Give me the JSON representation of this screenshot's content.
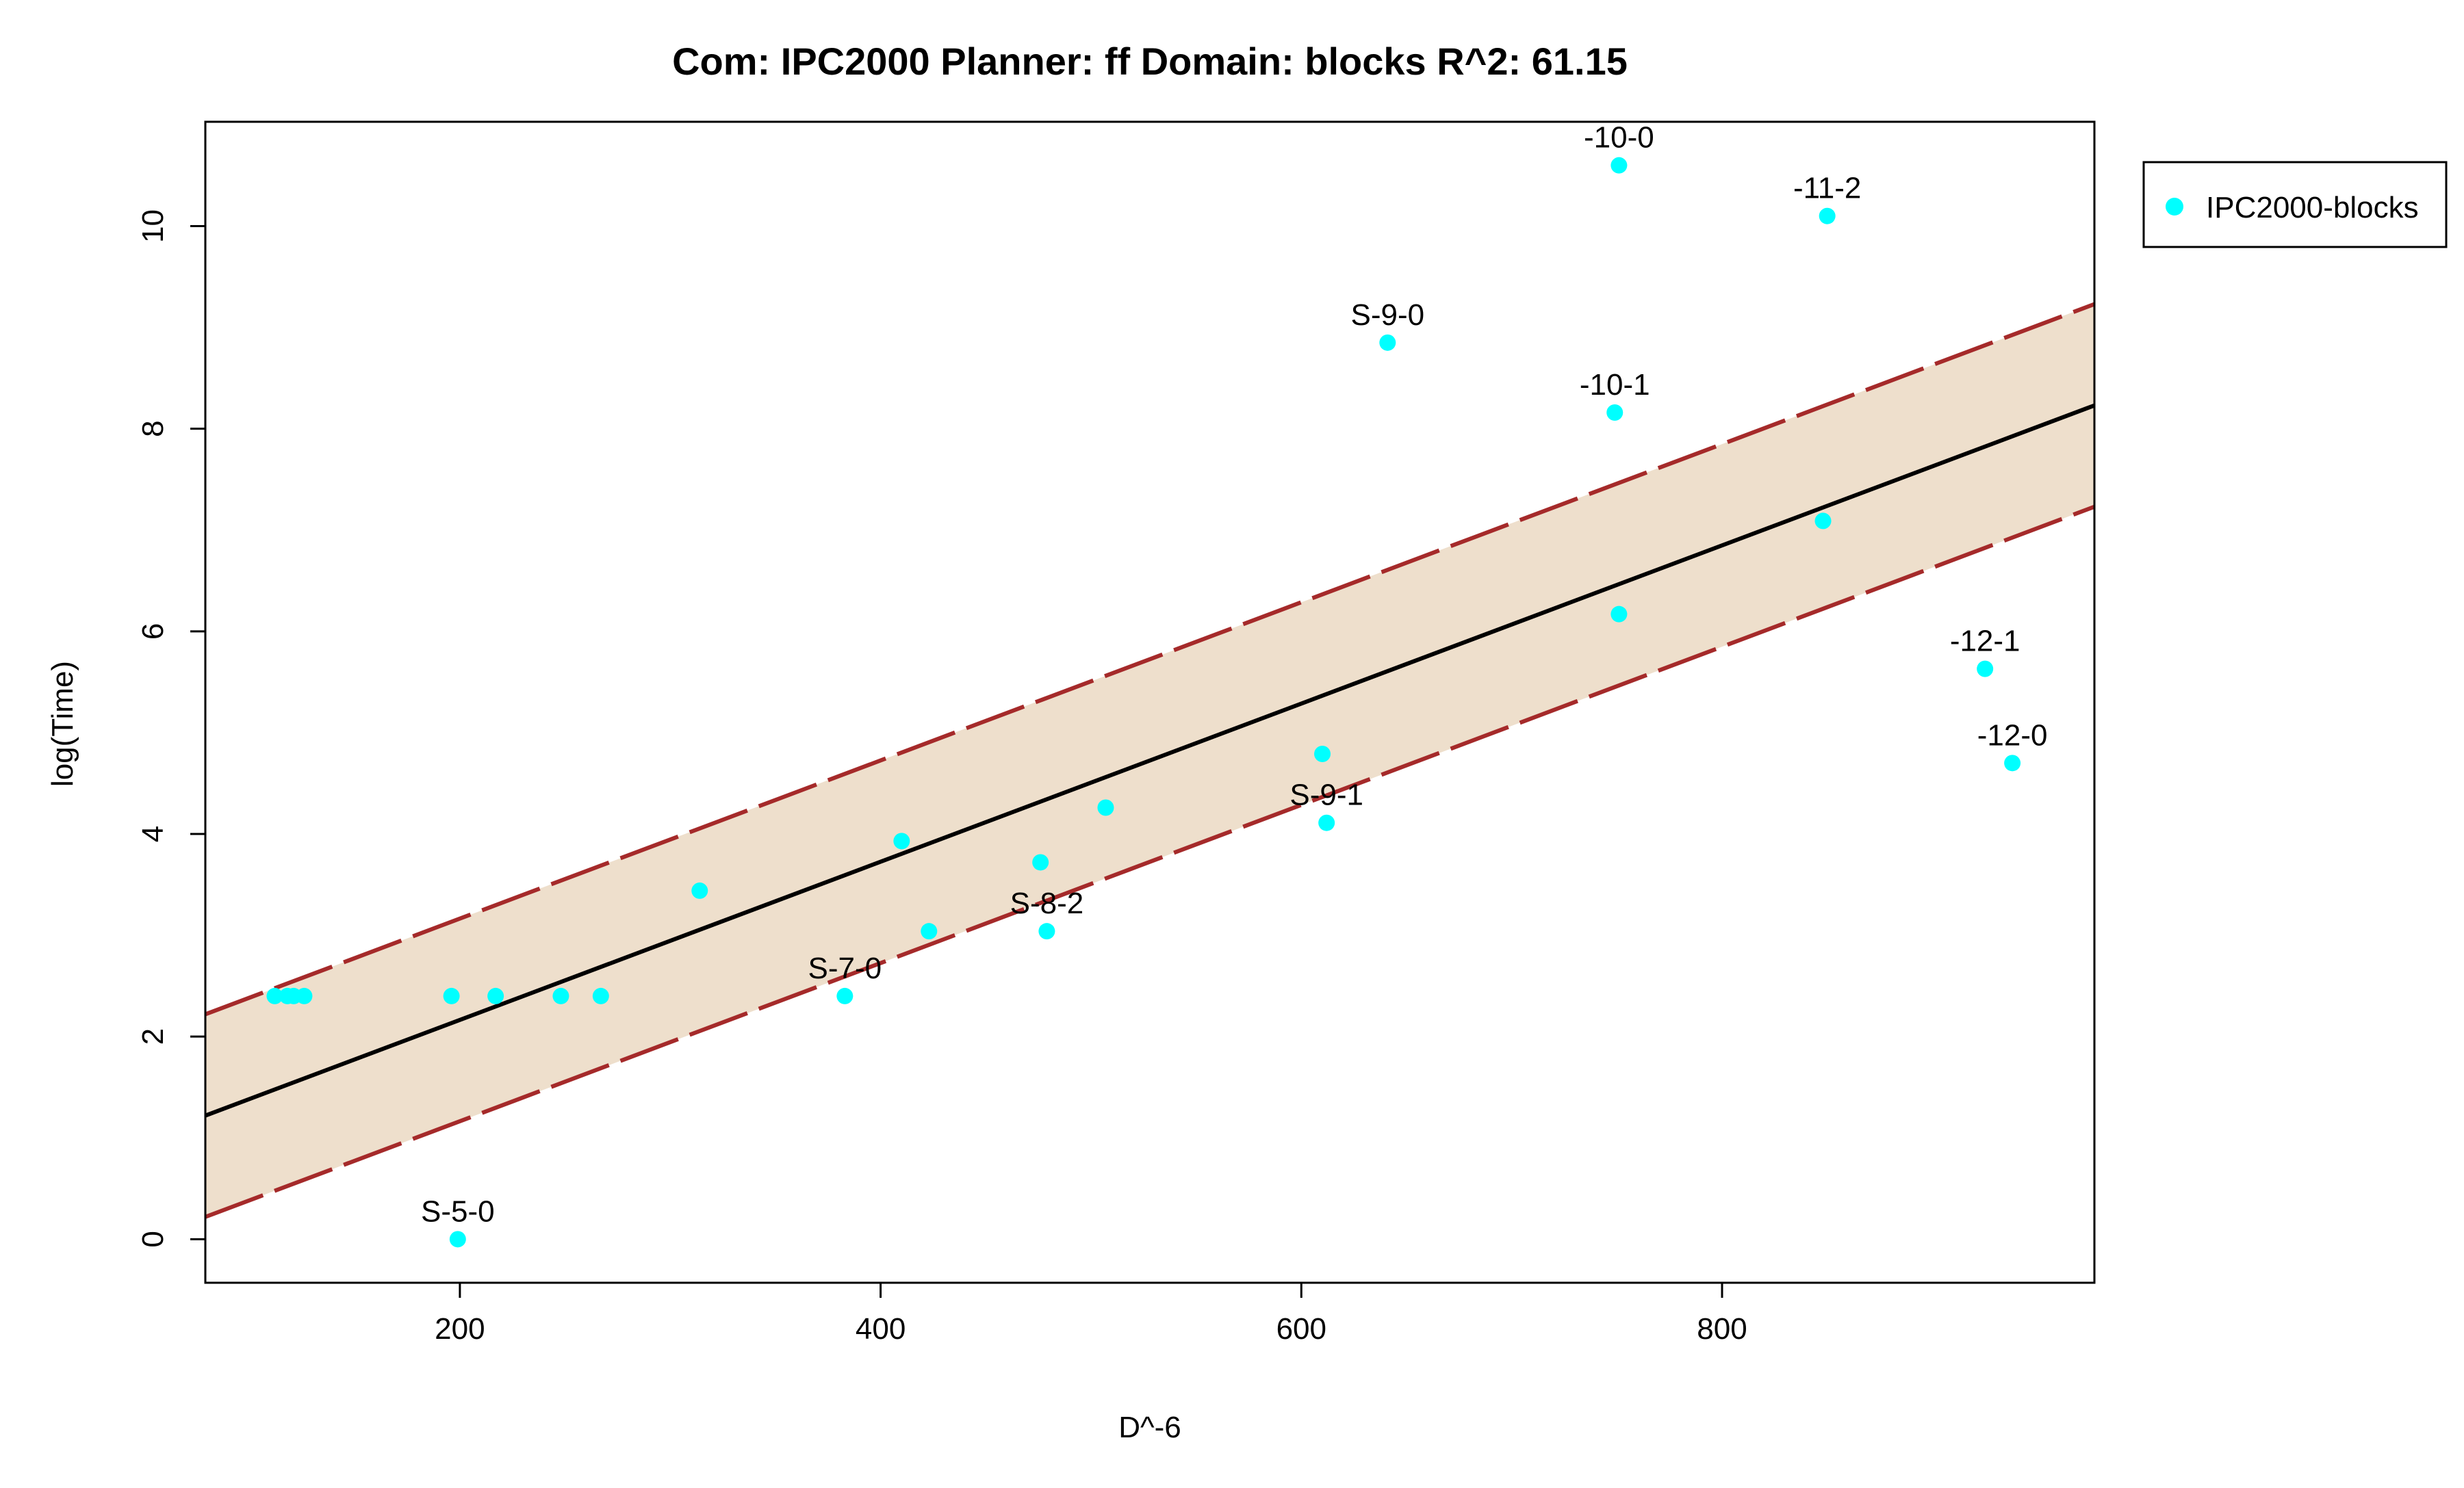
{
  "chart_data": {
    "type": "scatter",
    "title": "Com: IPC2000 Planner: ff Domain: blocks R^2: 61.15",
    "xlabel": "D^-6",
    "ylabel": "log(Time)",
    "xlim": [
      79,
      977
    ],
    "ylim": [
      -0.43,
      11.03
    ],
    "xticks": [
      200,
      400,
      600,
      800
    ],
    "yticks": [
      0,
      2,
      4,
      6,
      8,
      10
    ],
    "grid": false,
    "legend": {
      "position": "outside-right-top",
      "entries": [
        "IPC2000-blocks"
      ]
    },
    "series": [
      {
        "name": "IPC2000-blocks",
        "color": "#00ffff",
        "points": [
          {
            "x": 112,
            "y": 2.4,
            "label": ""
          },
          {
            "x": 118,
            "y": 2.4,
            "label": ""
          },
          {
            "x": 121,
            "y": 2.4,
            "label": ""
          },
          {
            "x": 126,
            "y": 2.4,
            "label": ""
          },
          {
            "x": 196,
            "y": 2.4,
            "label": ""
          },
          {
            "x": 199,
            "y": 0.0,
            "label": "S-5-0"
          },
          {
            "x": 217,
            "y": 2.4,
            "label": ""
          },
          {
            "x": 248,
            "y": 2.4,
            "label": ""
          },
          {
            "x": 267,
            "y": 2.4,
            "label": ""
          },
          {
            "x": 314,
            "y": 3.44,
            "label": ""
          },
          {
            "x": 383,
            "y": 2.4,
            "label": "S-7-0"
          },
          {
            "x": 410,
            "y": 3.93,
            "label": ""
          },
          {
            "x": 423,
            "y": 3.04,
            "label": ""
          },
          {
            "x": 476,
            "y": 3.72,
            "label": ""
          },
          {
            "x": 479,
            "y": 3.04,
            "label": "S-8-2"
          },
          {
            "x": 507,
            "y": 4.26,
            "label": ""
          },
          {
            "x": 610,
            "y": 4.79,
            "label": ""
          },
          {
            "x": 612,
            "y": 4.11,
            "label": "S-9-1"
          },
          {
            "x": 641,
            "y": 8.85,
            "label": "S-9-0"
          },
          {
            "x": 749,
            "y": 8.16,
            "label": "-10-1"
          },
          {
            "x": 751,
            "y": 10.6,
            "label": "-10-0"
          },
          {
            "x": 751,
            "y": 6.17,
            "label": ""
          },
          {
            "x": 848,
            "y": 7.09,
            "label": ""
          },
          {
            "x": 850,
            "y": 10.1,
            "label": "-11-2"
          },
          {
            "x": 925,
            "y": 5.63,
            "label": "-12-1"
          },
          {
            "x": 938,
            "y": 4.7,
            "label": "-12-0"
          }
        ]
      }
    ],
    "fit": {
      "line_color": "#000000",
      "band_line_color": "#a52a2a",
      "band_fill_color": "#eedfcc",
      "center": [
        [
          79,
          1.22
        ],
        [
          977,
          8.23
        ]
      ],
      "upper": [
        [
          79,
          2.22
        ],
        [
          977,
          9.23
        ]
      ],
      "lower": [
        [
          79,
          0.22
        ],
        [
          977,
          7.23
        ]
      ]
    }
  }
}
